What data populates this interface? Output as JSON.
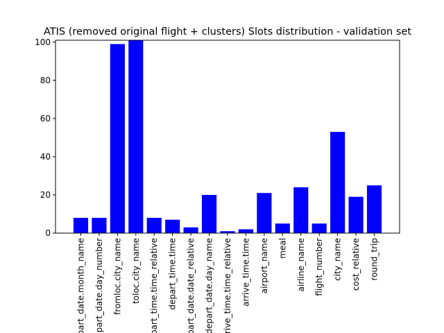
{
  "chart_data": {
    "type": "bar",
    "title": "ATIS (removed original flight + clusters) Slots distribution - validation set",
    "xlabel": "",
    "ylabel": "",
    "ylim": [
      0,
      101
    ],
    "yticks": [
      0,
      20,
      40,
      60,
      80,
      100
    ],
    "bar_color": "#0000ff",
    "categories": [
      "depart_date.month_name",
      "depart_date.day_number",
      "fromloc.city_name",
      "toloc.city_name",
      "depart_time.time_relative",
      "depart_time.time",
      "depart_date.date_relative",
      "depart_date.day_name",
      "arrive_time.time_relative",
      "arrive_time.time",
      "airport_name",
      "meal",
      "airline_name",
      "flight_number",
      "city_name",
      "cost_relative",
      "round_trip"
    ],
    "values": [
      8,
      8,
      99,
      101,
      8,
      7,
      3,
      20,
      1,
      2,
      21,
      5,
      24,
      5,
      53,
      19,
      25
    ]
  }
}
